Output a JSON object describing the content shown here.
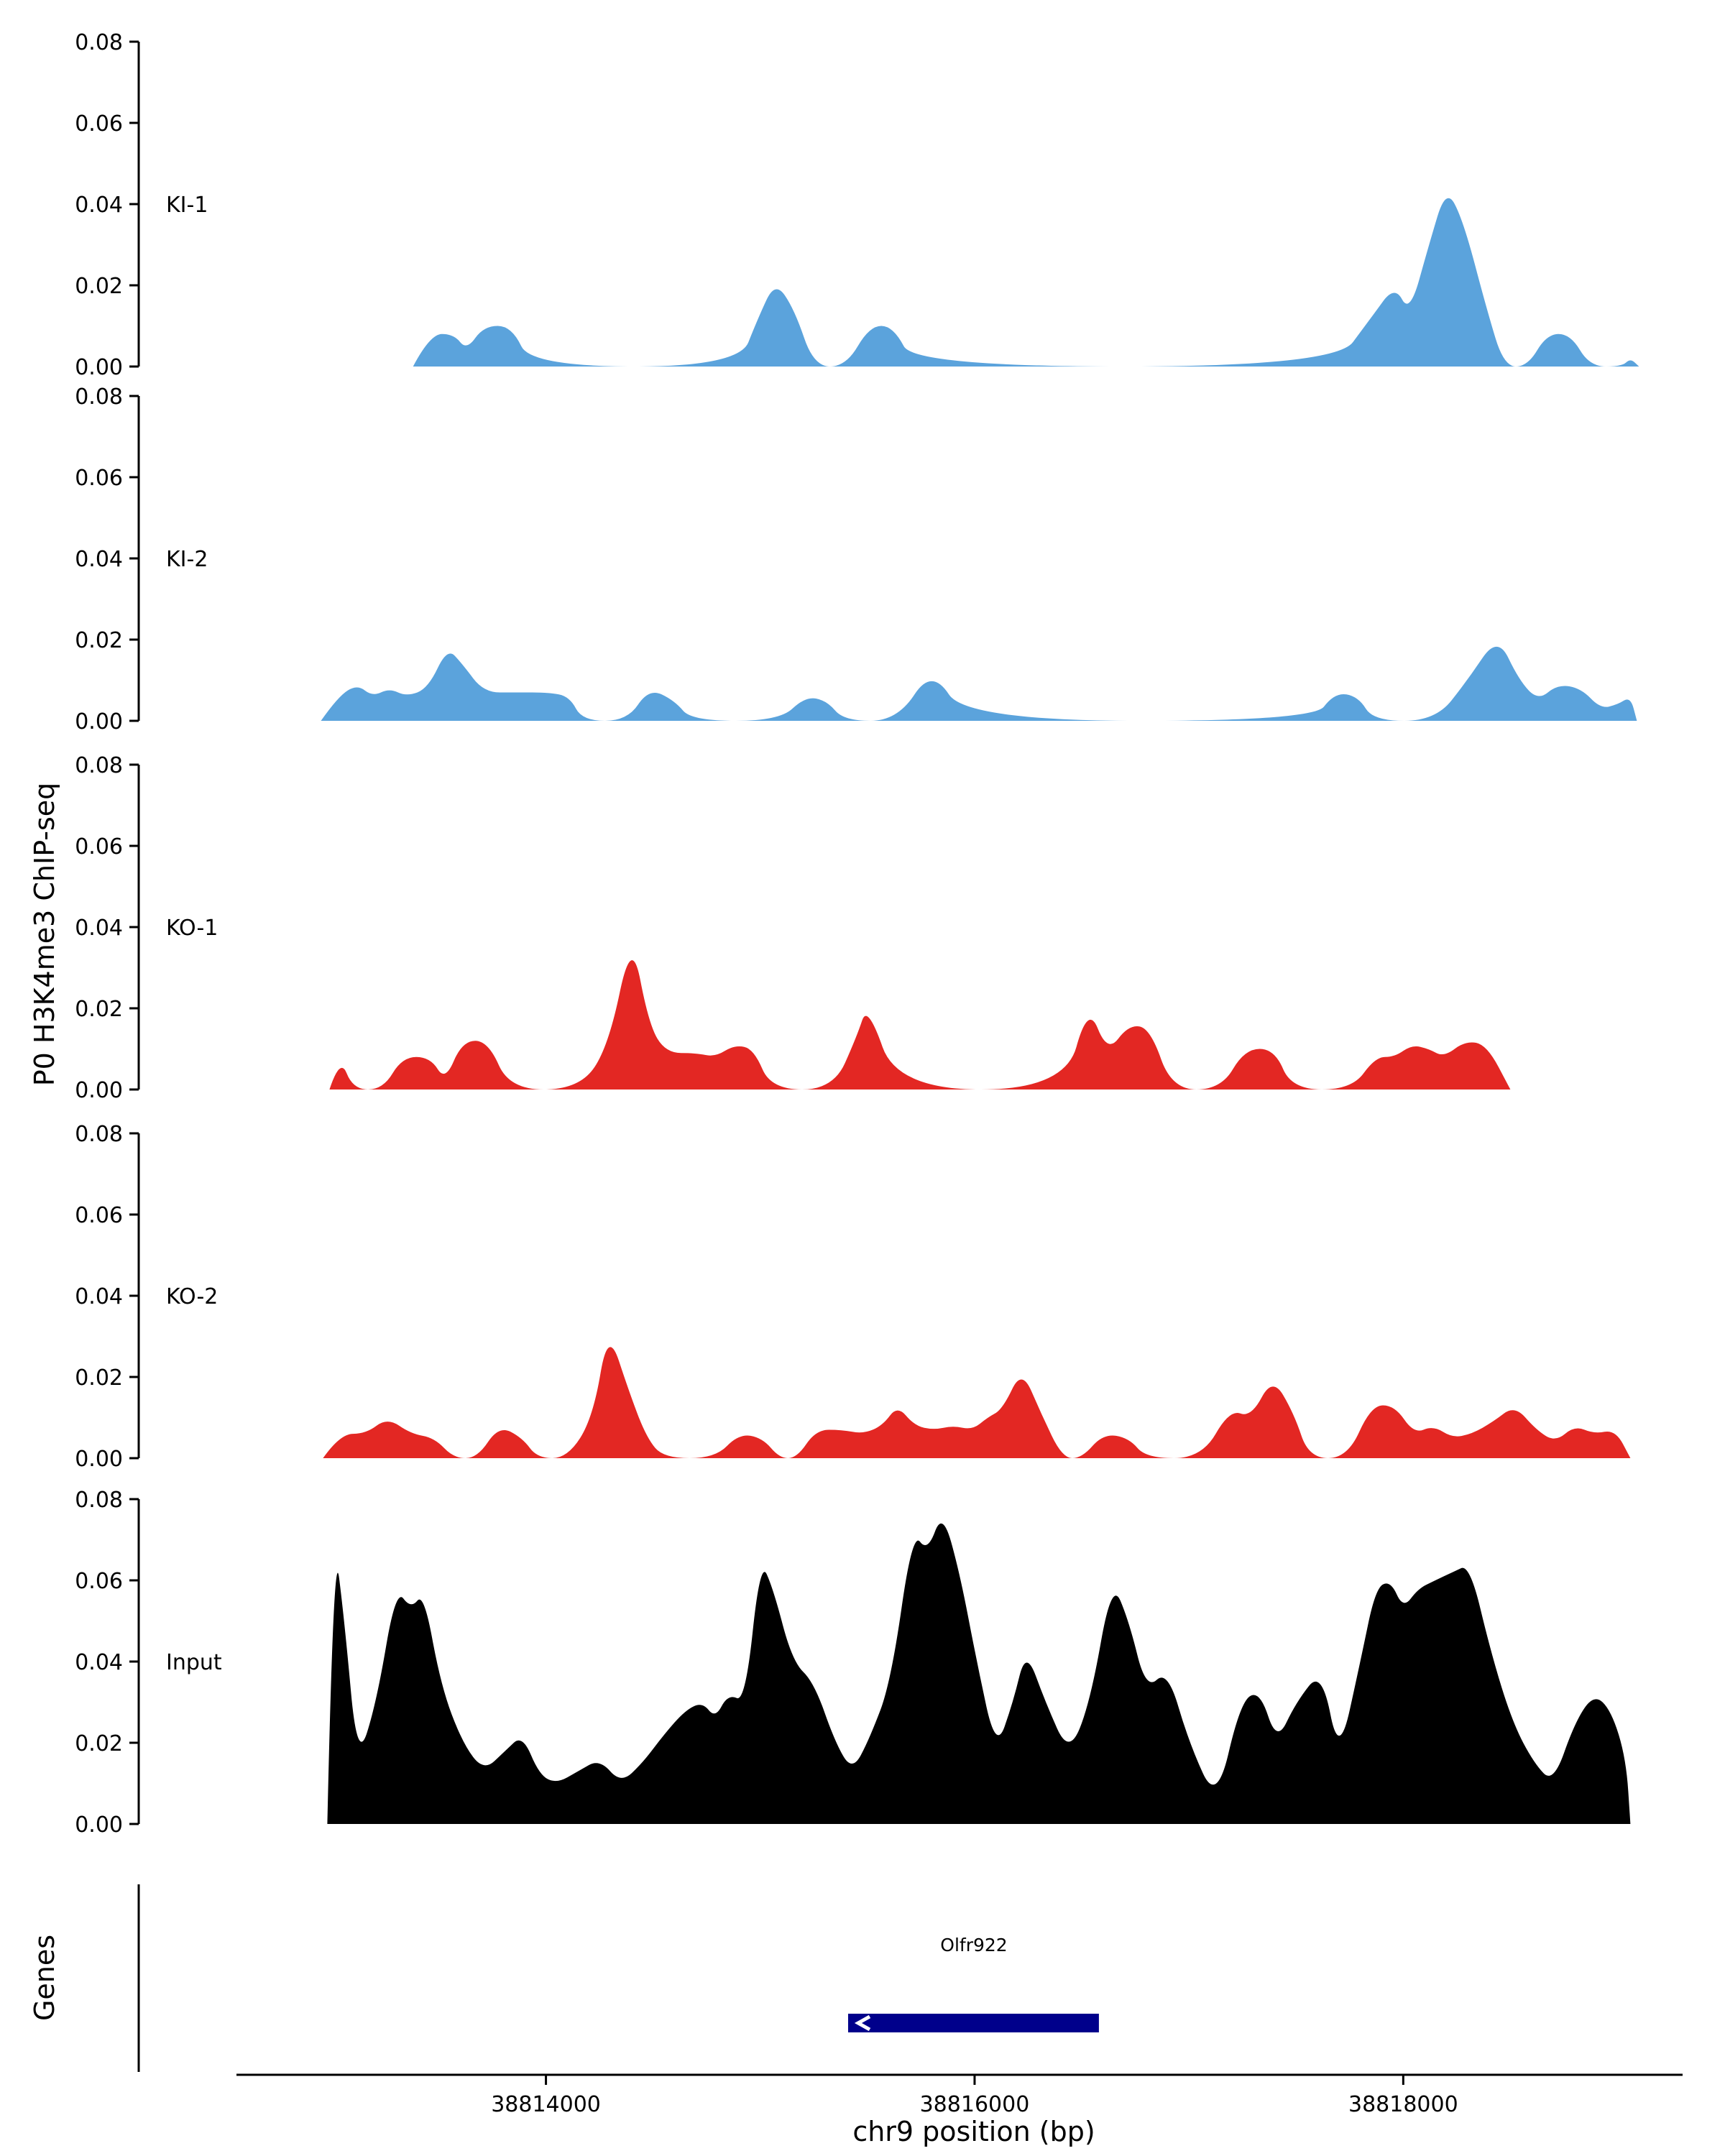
{
  "chart_data": {
    "type": "area",
    "title": "",
    "xlabel": "chr9 position (bp)",
    "ylabel": "P0 H3K4me3 ChIP-seq",
    "xlim": [
      38812100,
      38819300
    ],
    "track_ylim": [
      0,
      0.08
    ],
    "grid": false,
    "yticks": [
      {
        "label": "0.08",
        "value": 0.08
      },
      {
        "label": "0.06",
        "value": 0.06
      },
      {
        "label": "0.04",
        "value": 0.04
      },
      {
        "label": "0.02",
        "value": 0.02
      },
      {
        "label": "0.00",
        "value": 0.0
      }
    ],
    "xticks": [
      {
        "label": "38814000",
        "value": 38814000
      },
      {
        "label": "38816000",
        "value": 38816000
      },
      {
        "label": "38818000",
        "value": 38818000
      }
    ],
    "colors": {
      "ki": "#5BA3DC",
      "ko": "#E32723",
      "input": "#000000",
      "gene": "#00008B"
    },
    "tracks": [
      {
        "name": "KI-1",
        "color": "#5BA3DC",
        "points": [
          [
            38813380,
            0
          ],
          [
            38813460,
            0.008
          ],
          [
            38813570,
            0.008
          ],
          [
            38813630,
            0.004
          ],
          [
            38813710,
            0.01
          ],
          [
            38813840,
            0.01
          ],
          [
            38813930,
            0
          ],
          [
            38814900,
            0
          ],
          [
            38814990,
            0.012
          ],
          [
            38815070,
            0.021
          ],
          [
            38815160,
            0.014
          ],
          [
            38815250,
            0
          ],
          [
            38815400,
            0
          ],
          [
            38815510,
            0.01
          ],
          [
            38815620,
            0.01
          ],
          [
            38815720,
            0
          ],
          [
            38817680,
            0
          ],
          [
            38817850,
            0.012
          ],
          [
            38817960,
            0.02
          ],
          [
            38818030,
            0.013
          ],
          [
            38818120,
            0.03
          ],
          [
            38818200,
            0.044
          ],
          [
            38818280,
            0.036
          ],
          [
            38818390,
            0.014
          ],
          [
            38818470,
            0
          ],
          [
            38818580,
            0
          ],
          [
            38818670,
            0.008
          ],
          [
            38818780,
            0.008
          ],
          [
            38818870,
            0
          ],
          [
            38819020,
            0
          ],
          [
            38819060,
            0.002
          ],
          [
            38819100,
            0
          ]
        ]
      },
      {
        "name": "KI-2",
        "color": "#5BA3DC",
        "points": [
          [
            38812950,
            0
          ],
          [
            38813030,
            0.006
          ],
          [
            38813120,
            0.009
          ],
          [
            38813190,
            0.006
          ],
          [
            38813270,
            0.008
          ],
          [
            38813350,
            0.006
          ],
          [
            38813450,
            0.008
          ],
          [
            38813540,
            0.018
          ],
          [
            38813610,
            0.014
          ],
          [
            38813710,
            0.007
          ],
          [
            38813860,
            0.007
          ],
          [
            38814010,
            0.007
          ],
          [
            38814110,
            0.006
          ],
          [
            38814170,
            0
          ],
          [
            38814380,
            0
          ],
          [
            38814480,
            0.008
          ],
          [
            38814600,
            0.005
          ],
          [
            38814680,
            0
          ],
          [
            38815090,
            0
          ],
          [
            38815210,
            0.006
          ],
          [
            38815310,
            0.005
          ],
          [
            38815390,
            0
          ],
          [
            38815640,
            0
          ],
          [
            38815800,
            0.013
          ],
          [
            38815960,
            0
          ],
          [
            38817580,
            0
          ],
          [
            38817680,
            0.007
          ],
          [
            38817790,
            0.006
          ],
          [
            38817860,
            0
          ],
          [
            38818150,
            0
          ],
          [
            38818300,
            0.01
          ],
          [
            38818440,
            0.021
          ],
          [
            38818540,
            0.01
          ],
          [
            38818630,
            0.005
          ],
          [
            38818720,
            0.009
          ],
          [
            38818830,
            0.008
          ],
          [
            38818920,
            0.003
          ],
          [
            38819000,
            0.004
          ],
          [
            38819060,
            0.006
          ],
          [
            38819090,
            0
          ]
        ]
      },
      {
        "name": "KO-1",
        "color": "#E32723",
        "points": [
          [
            38812990,
            0
          ],
          [
            38813040,
            0.008
          ],
          [
            38813100,
            0
          ],
          [
            38813240,
            0
          ],
          [
            38813330,
            0.008
          ],
          [
            38813460,
            0.008
          ],
          [
            38813530,
            0.002
          ],
          [
            38813610,
            0.012
          ],
          [
            38813730,
            0.012
          ],
          [
            38813830,
            0
          ],
          [
            38814150,
            0
          ],
          [
            38814290,
            0.01
          ],
          [
            38814400,
            0.038
          ],
          [
            38814480,
            0.016
          ],
          [
            38814560,
            0.009
          ],
          [
            38814700,
            0.009
          ],
          [
            38814790,
            0.008
          ],
          [
            38814880,
            0.011
          ],
          [
            38814970,
            0.01
          ],
          [
            38815050,
            0
          ],
          [
            38815340,
            0
          ],
          [
            38815450,
            0.013
          ],
          [
            38815500,
            0.021
          ],
          [
            38815640,
            0
          ],
          [
            38816420,
            0
          ],
          [
            38816530,
            0.021
          ],
          [
            38816620,
            0.009
          ],
          [
            38816720,
            0.016
          ],
          [
            38816820,
            0.015
          ],
          [
            38816920,
            0
          ],
          [
            38817150,
            0
          ],
          [
            38817260,
            0.01
          ],
          [
            38817400,
            0.01
          ],
          [
            38817480,
            0
          ],
          [
            38817760,
            0
          ],
          [
            38817870,
            0.008
          ],
          [
            38817960,
            0.008
          ],
          [
            38818040,
            0.011
          ],
          [
            38818120,
            0.01
          ],
          [
            38818190,
            0.008
          ],
          [
            38818290,
            0.012
          ],
          [
            38818390,
            0.011
          ],
          [
            38818500,
            0
          ]
        ]
      },
      {
        "name": "KO-2",
        "color": "#E32723",
        "points": [
          [
            38812960,
            0
          ],
          [
            38813040,
            0.006
          ],
          [
            38813160,
            0.006
          ],
          [
            38813260,
            0.01
          ],
          [
            38813370,
            0.006
          ],
          [
            38813480,
            0.005
          ],
          [
            38813570,
            0
          ],
          [
            38813680,
            0
          ],
          [
            38813780,
            0.008
          ],
          [
            38813890,
            0.005
          ],
          [
            38813960,
            0
          ],
          [
            38814100,
            0
          ],
          [
            38814220,
            0.01
          ],
          [
            38814290,
            0.032
          ],
          [
            38814390,
            0.016
          ],
          [
            38814470,
            0.005
          ],
          [
            38814550,
            0
          ],
          [
            38814790,
            0
          ],
          [
            38814900,
            0.006
          ],
          [
            38815010,
            0.005
          ],
          [
            38815090,
            0
          ],
          [
            38815170,
            0
          ],
          [
            38815260,
            0.007
          ],
          [
            38815380,
            0.007
          ],
          [
            38815480,
            0.006
          ],
          [
            38815570,
            0.008
          ],
          [
            38815640,
            0.013
          ],
          [
            38815720,
            0.008
          ],
          [
            38815810,
            0.007
          ],
          [
            38815900,
            0.008
          ],
          [
            38815990,
            0.007
          ],
          [
            38816060,
            0.01
          ],
          [
            38816130,
            0.012
          ],
          [
            38816220,
            0.022
          ],
          [
            38816310,
            0.011
          ],
          [
            38816410,
            0
          ],
          [
            38816500,
            0
          ],
          [
            38816600,
            0.006
          ],
          [
            38816720,
            0.005
          ],
          [
            38816800,
            0
          ],
          [
            38817060,
            0
          ],
          [
            38817190,
            0.012
          ],
          [
            38817290,
            0.01
          ],
          [
            38817390,
            0.02
          ],
          [
            38817490,
            0.011
          ],
          [
            38817560,
            0
          ],
          [
            38817740,
            0
          ],
          [
            38817850,
            0.013
          ],
          [
            38817960,
            0.013
          ],
          [
            38818050,
            0.006
          ],
          [
            38818140,
            0.008
          ],
          [
            38818230,
            0.005
          ],
          [
            38818320,
            0.006
          ],
          [
            38818420,
            0.009
          ],
          [
            38818520,
            0.013
          ],
          [
            38818620,
            0.007
          ],
          [
            38818710,
            0.004
          ],
          [
            38818800,
            0.008
          ],
          [
            38818890,
            0.006
          ],
          [
            38818990,
            0.007
          ],
          [
            38819060,
            0
          ]
        ]
      },
      {
        "name": "Input",
        "color": "#000000",
        "points": [
          [
            38812980,
            0
          ],
          [
            38813010,
            0.071
          ],
          [
            38813060,
            0.05
          ],
          [
            38813120,
            0.015
          ],
          [
            38813210,
            0.03
          ],
          [
            38813300,
            0.058
          ],
          [
            38813370,
            0.053
          ],
          [
            38813430,
            0.057
          ],
          [
            38813510,
            0.034
          ],
          [
            38813610,
            0.02
          ],
          [
            38813710,
            0.013
          ],
          [
            38813810,
            0.018
          ],
          [
            38813890,
            0.022
          ],
          [
            38813970,
            0.012
          ],
          [
            38814050,
            0.01
          ],
          [
            38814150,
            0.013
          ],
          [
            38814250,
            0.016
          ],
          [
            38814350,
            0.01
          ],
          [
            38814450,
            0.015
          ],
          [
            38814550,
            0.022
          ],
          [
            38814650,
            0.028
          ],
          [
            38814730,
            0.03
          ],
          [
            38814790,
            0.026
          ],
          [
            38814850,
            0.032
          ],
          [
            38814930,
            0.03
          ],
          [
            38815000,
            0.065
          ],
          [
            38815060,
            0.058
          ],
          [
            38815150,
            0.04
          ],
          [
            38815250,
            0.035
          ],
          [
            38815350,
            0.02
          ],
          [
            38815430,
            0.013
          ],
          [
            38815510,
            0.021
          ],
          [
            38815610,
            0.035
          ],
          [
            38815710,
            0.072
          ],
          [
            38815780,
            0.067
          ],
          [
            38815850,
            0.077
          ],
          [
            38815930,
            0.062
          ],
          [
            38816010,
            0.04
          ],
          [
            38816100,
            0.018
          ],
          [
            38816180,
            0.03
          ],
          [
            38816240,
            0.043
          ],
          [
            38816330,
            0.03
          ],
          [
            38816440,
            0.017
          ],
          [
            38816540,
            0.03
          ],
          [
            38816640,
            0.06
          ],
          [
            38816720,
            0.05
          ],
          [
            38816800,
            0.033
          ],
          [
            38816900,
            0.038
          ],
          [
            38817000,
            0.02
          ],
          [
            38817130,
            0.005
          ],
          [
            38817240,
            0.03
          ],
          [
            38817330,
            0.033
          ],
          [
            38817410,
            0.02
          ],
          [
            38817500,
            0.03
          ],
          [
            38817620,
            0.038
          ],
          [
            38817700,
            0.016
          ],
          [
            38817800,
            0.04
          ],
          [
            38817870,
            0.058
          ],
          [
            38817940,
            0.06
          ],
          [
            38818000,
            0.053
          ],
          [
            38818070,
            0.058
          ],
          [
            38818150,
            0.06
          ],
          [
            38818230,
            0.062
          ],
          [
            38818310,
            0.064
          ],
          [
            38818410,
            0.042
          ],
          [
            38818510,
            0.025
          ],
          [
            38818610,
            0.015
          ],
          [
            38818700,
            0.01
          ],
          [
            38818800,
            0.025
          ],
          [
            38818890,
            0.032
          ],
          [
            38818970,
            0.028
          ],
          [
            38819040,
            0.016
          ],
          [
            38819060,
            0
          ]
        ]
      }
    ],
    "genes": {
      "label": "Genes",
      "gene": {
        "name": "Olfr922",
        "start": 38815410,
        "end": 38816580,
        "strand": "-",
        "color": "#00008B"
      }
    }
  }
}
